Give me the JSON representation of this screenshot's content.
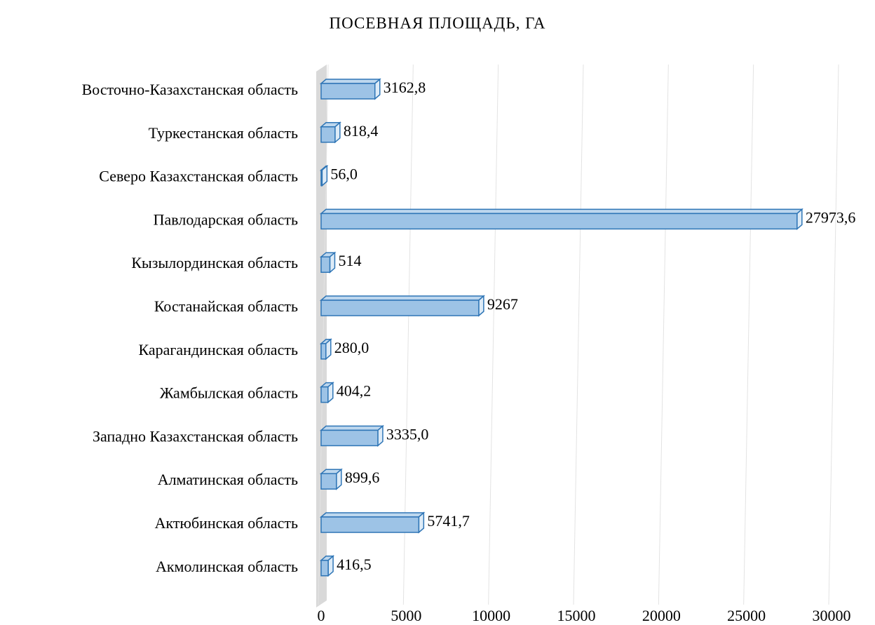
{
  "chart_data": {
    "type": "bar3d_horizontal",
    "title": "ПОСЕВНАЯ ПЛОЩАДЬ, ГА",
    "categories": [
      "Восточно-Казахстанская область",
      "Туркестанская область",
      "Северо Казахстанская область",
      "Павлодарская область",
      "Кызылординская область",
      "Костанайская область",
      "Карагандинская область",
      "Жамбылская область",
      "Западно Казахстанская область",
      "Алматинская область",
      "Актюбинская область",
      "Акмолинская область"
    ],
    "values": [
      3162.8,
      818.4,
      56.0,
      27973.6,
      514,
      9267,
      280.0,
      404.2,
      3335.0,
      899.6,
      5741.7,
      416.5
    ],
    "value_labels": [
      "3162,8",
      "818,4",
      "56,0",
      "27973,6",
      "514",
      "9267",
      "280,0",
      "404,2",
      "3335,0",
      "899,6",
      "5741,7",
      "416,5"
    ],
    "color": "#9dc3e6",
    "edge_color": "#2e75b6",
    "xlim": [
      0,
      30000
    ],
    "xticks": [
      0,
      5000,
      10000,
      15000,
      20000,
      25000,
      30000
    ],
    "grid": true
  }
}
